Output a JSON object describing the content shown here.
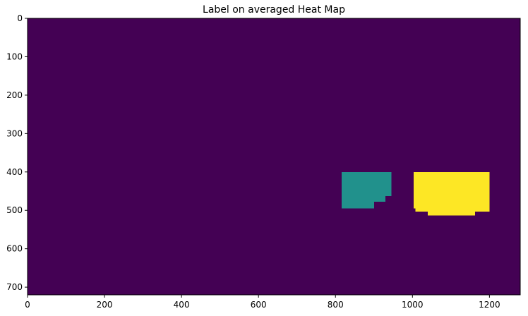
{
  "chart_data": {
    "type": "heatmap",
    "title": "Label on averaged Heat Map",
    "xlabel": "",
    "ylabel": "",
    "xlim": [
      0,
      1280
    ],
    "ylim": [
      720,
      0
    ],
    "x_ticks": [
      0,
      200,
      400,
      600,
      800,
      1000,
      1200
    ],
    "y_ticks": [
      0,
      100,
      200,
      300,
      400,
      500,
      600,
      700
    ],
    "grid": false,
    "colormap": "viridis",
    "colors": {
      "background": "#440154",
      "label_1": "#21918c",
      "label_2": "#fde725"
    },
    "labeled_regions": [
      {
        "label": 1,
        "rects": [
          {
            "x0": 816,
            "x1": 945,
            "y0": 400,
            "y1": 463
          },
          {
            "x0": 816,
            "x1": 930,
            "y0": 463,
            "y1": 478
          },
          {
            "x0": 816,
            "x1": 900,
            "y0": 478,
            "y1": 495
          }
        ]
      },
      {
        "label": 2,
        "rects": [
          {
            "x0": 1003,
            "x1": 1200,
            "y0": 400,
            "y1": 495
          },
          {
            "x0": 1008,
            "x1": 1200,
            "y0": 495,
            "y1": 503
          },
          {
            "x0": 1040,
            "x1": 1163,
            "y0": 503,
            "y1": 513
          }
        ]
      }
    ]
  }
}
